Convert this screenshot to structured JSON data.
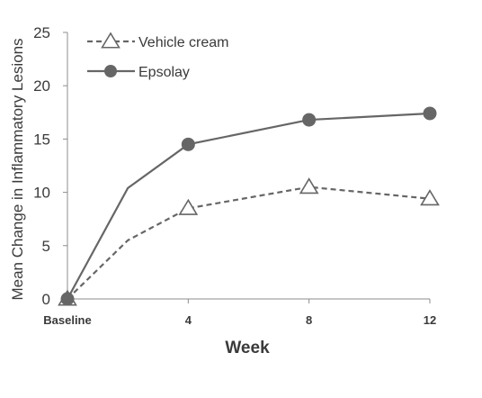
{
  "chart_data": {
    "type": "line",
    "x": [
      0,
      2,
      4,
      8,
      12
    ],
    "x_tick_values": [
      0,
      4,
      8,
      12
    ],
    "x_tick_labels": [
      "Baseline",
      "4",
      "8",
      "12"
    ],
    "xlabel": "Week",
    "ylabel": "Mean Change in Inflammatory Lesions",
    "xlim": [
      0,
      12
    ],
    "ylim": [
      0,
      25
    ],
    "y_ticks": [
      0,
      5,
      10,
      15,
      20,
      25
    ],
    "grid": false,
    "legend_position": "top-left",
    "series": [
      {
        "name": "Vehicle cream",
        "values": [
          0,
          5.5,
          8.5,
          10.5,
          9.4
        ],
        "marker_indices": [
          0,
          2,
          3,
          4
        ],
        "style": "dashed",
        "marker": "open-triangle",
        "color": "#666666"
      },
      {
        "name": "Epsolay",
        "values": [
          0,
          10.4,
          14.5,
          16.8,
          17.4
        ],
        "marker_indices": [
          0,
          2,
          3,
          4
        ],
        "style": "solid",
        "marker": "filled-circle",
        "color": "#666666"
      }
    ]
  }
}
